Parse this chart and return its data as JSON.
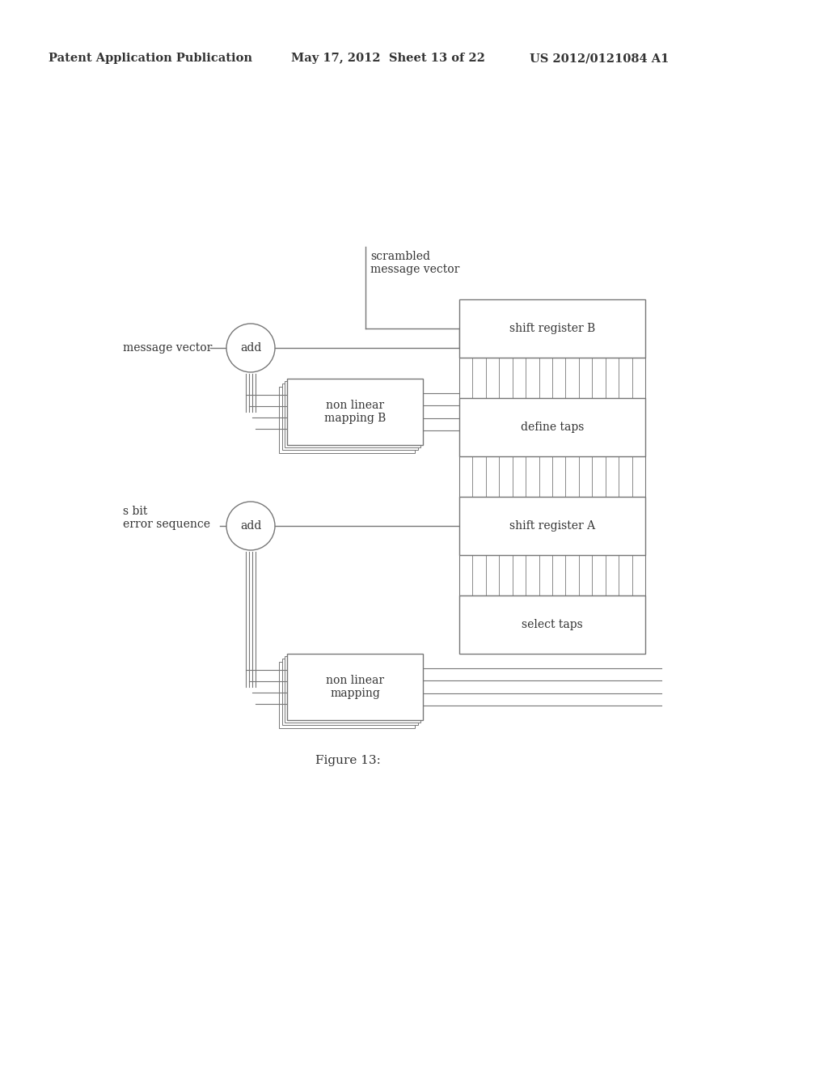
{
  "header_left": "Patent Application Publication",
  "header_mid": "May 17, 2012  Sheet 13 of 22",
  "header_right": "US 2012/0121084 A1",
  "figure_label": "Figure 13:",
  "bg": "#ffffff",
  "lc": "#777777",
  "tc": "#333333",
  "fs": 10.0,
  "fsh": 10.5,
  "fig_fs": 11.0
}
